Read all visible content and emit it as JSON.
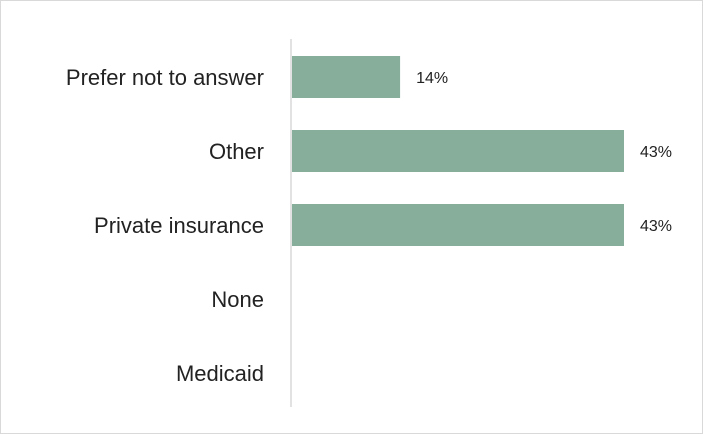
{
  "chart_data": {
    "type": "bar",
    "orientation": "horizontal",
    "categories": [
      "Prefer not to answer",
      "Other",
      "Private insurance",
      "None",
      "Medicaid"
    ],
    "values": [
      14,
      43,
      43,
      0,
      0
    ],
    "value_labels": [
      "14%",
      "43%",
      "43%",
      "",
      ""
    ],
    "unit": "%",
    "xlim": [
      0,
      43
    ],
    "grid": false,
    "legend": "none",
    "title": "",
    "xlabel": "",
    "ylabel": "",
    "bar_color": "#87AE9A"
  }
}
